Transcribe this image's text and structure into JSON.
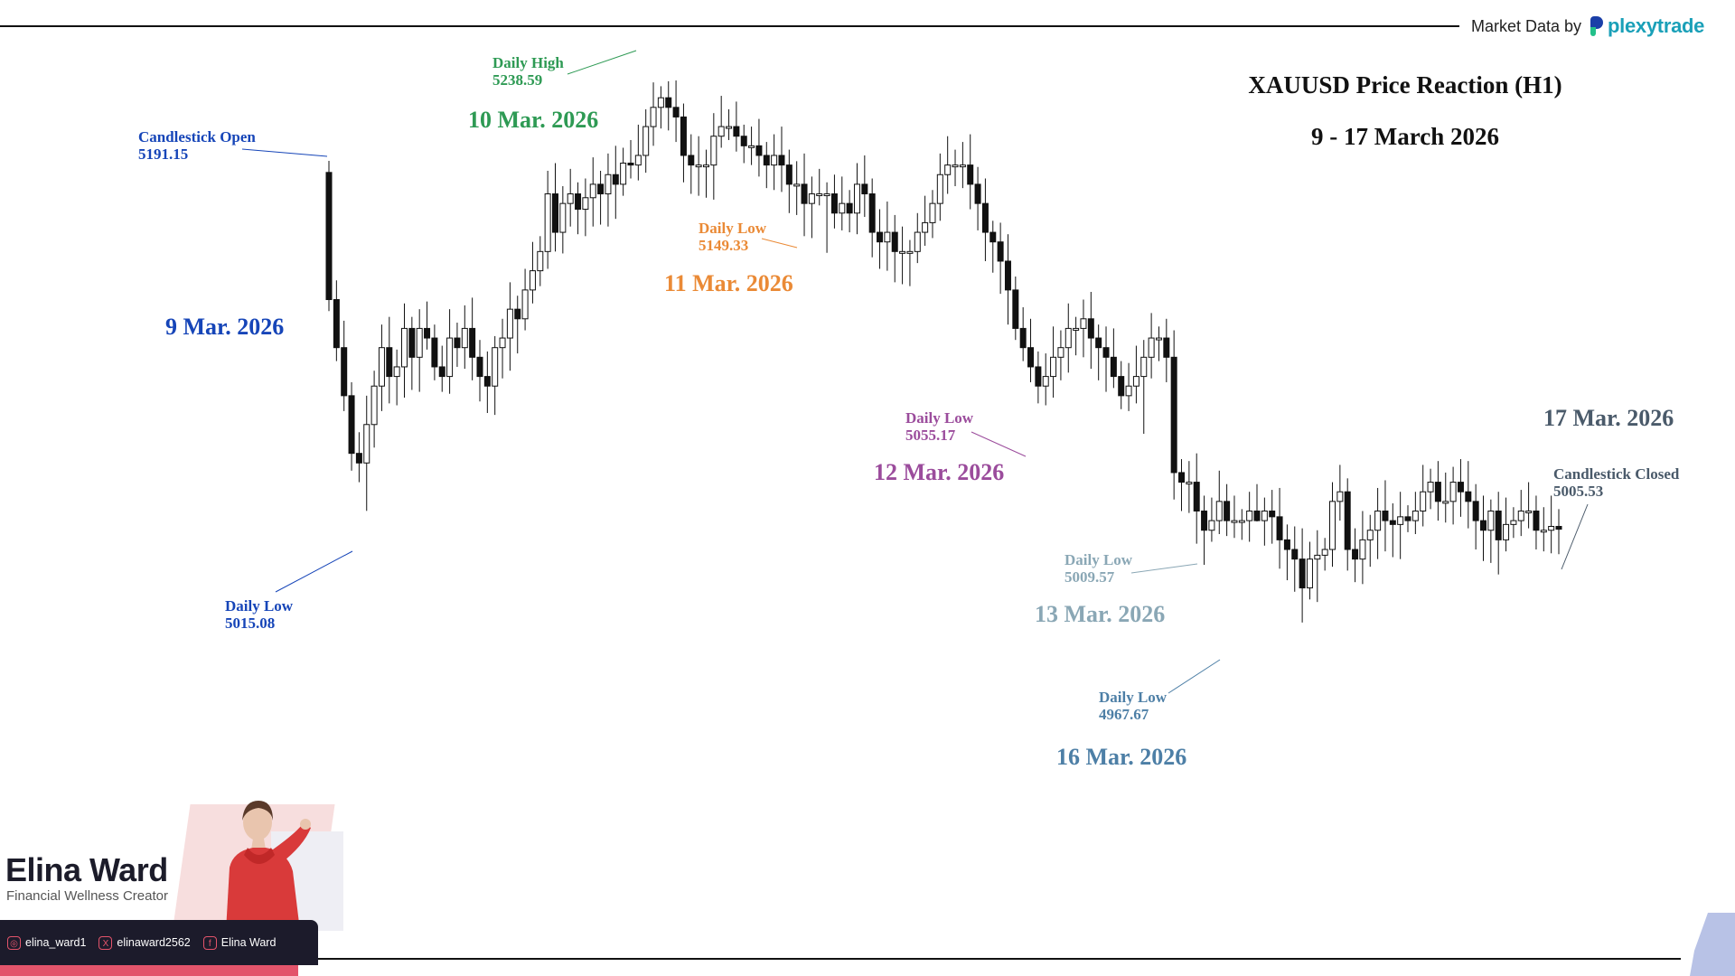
{
  "header": {
    "market_data_label": "Market Data by",
    "brand_name": "plexytrade",
    "title_line1": "XAUUSD Price Reaction (H1)",
    "title_line2": "9 - 17 March 2026"
  },
  "colors": {
    "mar9": "#1645b8",
    "mar10": "#2e9a54",
    "mar11": "#ea8a36",
    "mar12": "#9b4c9c",
    "mar13": "#8aa7b5",
    "mar16": "#4d7fa6",
    "mar17": "#4a5a6a"
  },
  "annotations": {
    "candle_open_label": "Candlestick Open",
    "candle_open_value": "5191.15",
    "daily_low_label": "Daily Low",
    "daily_high_label": "Daily High",
    "mar9_low_value": "5015.08",
    "mar10_high_value": "5238.59",
    "mar11_low_value": "5149.33",
    "mar12_low_value": "5055.17",
    "mar13_low_value": "5009.57",
    "mar16_low_value": "4967.67",
    "candle_closed_label": "Candlestick Closed",
    "candle_closed_value": "5005.53"
  },
  "dates": {
    "mar9": "9 Mar. 2026",
    "mar10": "10 Mar. 2026",
    "mar11": "11 Mar. 2026",
    "mar12": "12 Mar. 2026",
    "mar13": "13 Mar. 2026",
    "mar16": "16 Mar. 2026",
    "mar17": "17 Mar. 2026"
  },
  "creator": {
    "name": "Elina Ward",
    "role": "Financial Wellness Creator",
    "instagram": "elina_ward1",
    "x": "elinaward2562",
    "facebook": "Elina Ward"
  },
  "chart_data": {
    "type": "candlestick",
    "symbol": "XAUUSD",
    "timeframe": "H1",
    "ylim": [
      4940,
      5255
    ],
    "grid": false,
    "open_first": 5191.15,
    "close_last": 5005.53,
    "daily_extremes": [
      {
        "day": "9 Mar. 2026",
        "type": "low",
        "value": 5015.08
      },
      {
        "day": "10 Mar. 2026",
        "type": "high",
        "value": 5238.59
      },
      {
        "day": "11 Mar. 2026",
        "type": "low",
        "value": 5149.33
      },
      {
        "day": "12 Mar. 2026",
        "type": "low",
        "value": 5055.17
      },
      {
        "day": "13 Mar. 2026",
        "type": "low",
        "value": 5009.57
      },
      {
        "day": "16 Mar. 2026",
        "type": "low",
        "value": 4967.67
      }
    ],
    "closes": [
      5191.15,
      5100,
      5075,
      5045,
      5040,
      5060,
      5080,
      5100,
      5085,
      5090,
      5110,
      5095,
      5110,
      5105,
      5090,
      5085,
      5105,
      5100,
      5110,
      5095,
      5085,
      5080,
      5100,
      5105,
      5120,
      5115,
      5130,
      5140,
      5150,
      5180,
      5160,
      5175,
      5180,
      5172,
      5178,
      5185,
      5180,
      5190,
      5185,
      5196,
      5195,
      5200,
      5215,
      5225,
      5230,
      5225,
      5220,
      5200,
      5195,
      5195,
      5195,
      5210,
      5215,
      5215,
      5210,
      5205,
      5205,
      5200,
      5195,
      5200,
      5195,
      5185,
      5185,
      5175,
      5180,
      5180,
      5180,
      5170,
      5175,
      5170,
      5185,
      5180,
      5160,
      5155,
      5160,
      5150,
      5150,
      5150,
      5160,
      5165,
      5175,
      5190,
      5195,
      5195,
      5195,
      5185,
      5175,
      5160,
      5155,
      5145,
      5130,
      5110,
      5100,
      5090,
      5080,
      5085,
      5095,
      5100,
      5110,
      5110,
      5115,
      5105,
      5100,
      5095,
      5085,
      5075,
      5080,
      5085,
      5095,
      5105,
      5105,
      5095,
      5035,
      5030,
      5030,
      5015,
      5005,
      5010,
      5020,
      5010,
      5010,
      5010,
      5015,
      5010,
      5015,
      5012,
      5000,
      4995,
      4990,
      4975,
      4990,
      4992,
      4995,
      5020,
      5025,
      4995,
      4990,
      5000,
      5005,
      5015,
      5010,
      5008,
      5012,
      5010,
      5015,
      5025,
      5030,
      5020,
      5020,
      5030,
      5025,
      5020,
      5010,
      5005,
      5015,
      5000,
      5008,
      5010,
      5015,
      5015,
      5005,
      5005,
      5007,
      5005.53
    ]
  }
}
